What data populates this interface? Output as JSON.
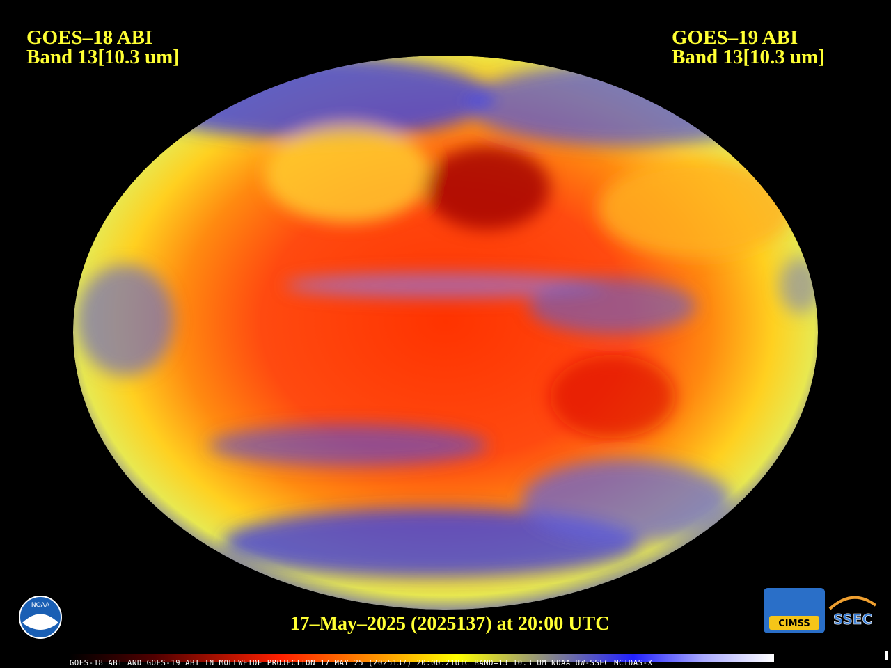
{
  "header": {
    "left": {
      "satellite": "GOES–18 ABI",
      "band": "Band 13[10.3 um]"
    },
    "right": {
      "satellite": "GOES–19 ABI",
      "band": "Band 13[10.3 um]"
    }
  },
  "timestamp": "17–May–2025 (2025137) at 20:00 UTC",
  "footer": "GOES-18 ABI AND GOES-19 ABI IN MOLLWEIDE PROJECTION 17 MAY 25 (2025137) 20:00:21UTC BAND=13 10.3 UM NOAA UW-SSEC MCIDAS-X",
  "logos": {
    "noaa": "NOAA",
    "cimss": "CIMSS",
    "ssec": "SSEC"
  }
}
